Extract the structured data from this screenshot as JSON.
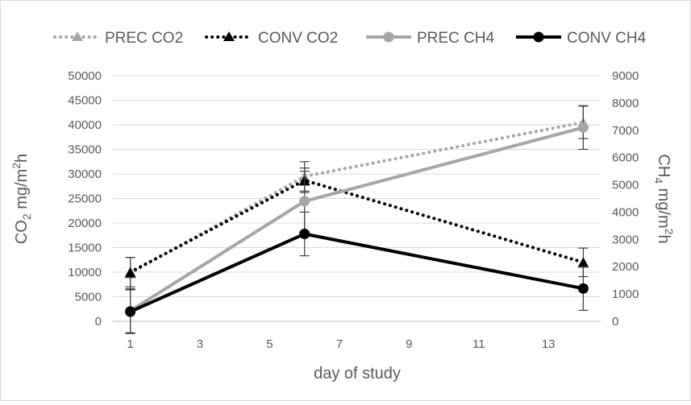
{
  "chart_data": {
    "type": "line",
    "title": "",
    "xlabel": "day of study",
    "ylabel_left": {
      "main": "CO",
      "sub": "2",
      "rest": " mg/m",
      "sup": "2",
      "tail": "h"
    },
    "ylabel_right": {
      "main": "CH",
      "sub": "4",
      "rest": " mg/m",
      "sup": "2",
      "tail": "h"
    },
    "x_ticks": [
      1,
      3,
      5,
      7,
      9,
      11,
      13
    ],
    "xlim": [
      0.5,
      14.5
    ],
    "ylim_left": [
      0,
      50000
    ],
    "y_ticks_left": [
      0,
      5000,
      10000,
      15000,
      20000,
      25000,
      30000,
      35000,
      40000,
      45000,
      50000
    ],
    "ylim_right": [
      0,
      9000
    ],
    "y_ticks_right": [
      0,
      1000,
      2000,
      3000,
      4000,
      5000,
      6000,
      7000,
      8000,
      9000
    ],
    "legend_position": "top",
    "grid": "horizontal",
    "series": [
      {
        "name": "PREC CO2",
        "axis": "left",
        "color": "#a6a6a6",
        "style": "dotted",
        "marker": "triangle",
        "points": [
          {
            "x": 1,
            "y": 9800,
            "err": 3200
          },
          {
            "x": 6,
            "y": 29500,
            "err": 3000
          },
          {
            "x": 14,
            "y": 40500,
            "err": 3300
          }
        ]
      },
      {
        "name": "CONV CO2",
        "axis": "left",
        "color": "#000000",
        "style": "dotted",
        "marker": "triangle",
        "points": [
          {
            "x": 1,
            "y": 10000,
            "err": 3000
          },
          {
            "x": 6,
            "y": 28700,
            "err": 2500
          },
          {
            "x": 14,
            "y": 12000,
            "err": 2900
          }
        ]
      },
      {
        "name": "PREC CH4",
        "axis": "right",
        "color": "#a6a6a6",
        "style": "solid",
        "marker": "circle",
        "points": [
          {
            "x": 1,
            "y": 380,
            "err": 800
          },
          {
            "x": 6,
            "y": 4400,
            "err": 1100
          },
          {
            "x": 14,
            "y": 7100,
            "err": 800
          }
        ]
      },
      {
        "name": "CONV CH4",
        "axis": "right",
        "color": "#000000",
        "style": "solid",
        "marker": "circle",
        "points": [
          {
            "x": 1,
            "y": 350,
            "err": 800
          },
          {
            "x": 6,
            "y": 3200,
            "err": 800
          },
          {
            "x": 14,
            "y": 1200,
            "err": 800
          }
        ]
      }
    ]
  }
}
